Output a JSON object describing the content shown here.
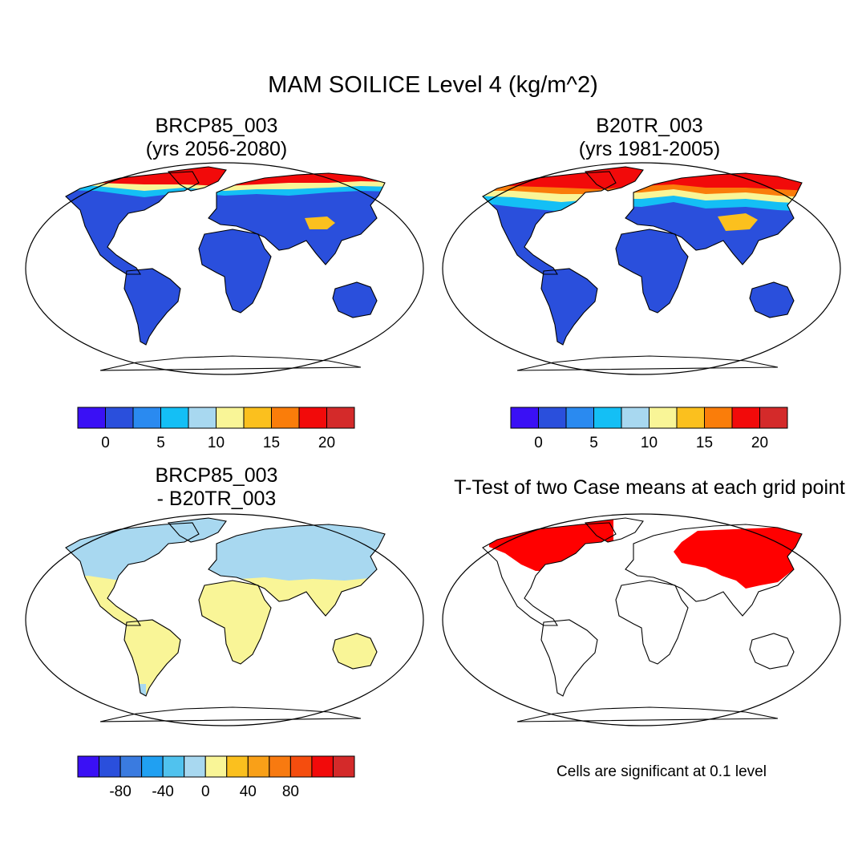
{
  "figure": {
    "title": "MAM SOILICE Level 4 (kg/m^2)"
  },
  "panels": [
    {
      "id": "top-left",
      "title_line1": "BRCP85_003",
      "title_line2": "(yrs 2056-2080)"
    },
    {
      "id": "top-right",
      "title_line1": "B20TR_003",
      "title_line2": "(yrs 1981-2005)"
    },
    {
      "id": "bottom-left",
      "title_line1": "BRCP85_003",
      "title_line2": "- B20TR_003"
    },
    {
      "id": "bottom-right",
      "title_line1": "T-Test of two Case means at each grid point"
    }
  ],
  "colorbars": {
    "absolute": {
      "colors": [
        "#3a10f5",
        "#2a4fdc",
        "#2a8af0",
        "#14bff5",
        "#a8d8f0",
        "#f9f597",
        "#fbc01e",
        "#fa7d0a",
        "#f20a0a",
        "#d42a2a"
      ],
      "tick_labels": [
        "0",
        "5",
        "10",
        "15",
        "20"
      ]
    },
    "difference": {
      "colors": [
        "#3a10f5",
        "#2a4fdc",
        "#3a7be0",
        "#20a0f2",
        "#50c2ee",
        "#a8d8f0",
        "#f9f597",
        "#fbc01e",
        "#f9a018",
        "#f87a10",
        "#f54d0e",
        "#f20a0a",
        "#d42a2a"
      ],
      "tick_labels": [
        "-80",
        "-40",
        "0",
        "40",
        "80"
      ]
    }
  },
  "significance_note": "Cells are significant at 0.1 level",
  "colors": {
    "ocean": "#ffffff",
    "significant": "#ff0000",
    "coastline": "#000000"
  }
}
